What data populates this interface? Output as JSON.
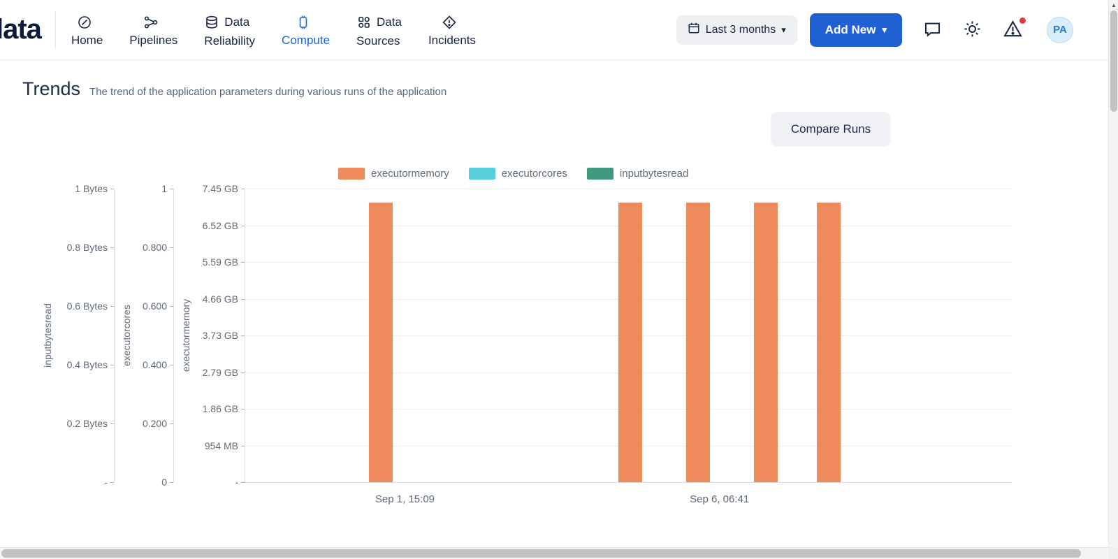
{
  "brand": {
    "logo_text": "lata"
  },
  "nav": {
    "items": [
      {
        "word1": "",
        "word2": "Home",
        "active": false
      },
      {
        "word1": "",
        "word2": "Pipelines",
        "active": false
      },
      {
        "word1": "Data",
        "word2": "Reliability",
        "active": false
      },
      {
        "word1": "",
        "word2": "Compute",
        "active": true
      },
      {
        "word1": "Data",
        "word2": "Sources",
        "active": false
      },
      {
        "word1": "",
        "word2": "Incidents",
        "active": false
      }
    ]
  },
  "toolbar": {
    "date_range_label": "Last 3 months",
    "add_new_label": "Add New",
    "avatar_initials": "PA"
  },
  "page": {
    "title": "Trends",
    "subtitle": "The trend of the application parameters during various runs of the application",
    "compare_runs_label": "Compare Runs"
  },
  "colors": {
    "accent_blue": "#1F62D6",
    "bar_orange": "#EF8A5C",
    "legend_cyan": "#57CFDC",
    "legend_teal": "#3F997E"
  },
  "chart_data": {
    "type": "bar",
    "title": "",
    "grid": true,
    "legend_position": "top-center",
    "y_axes": [
      {
        "title": "inputbytesread",
        "unit": "Bytes",
        "range": [
          0,
          1
        ],
        "ticks": [
          "1 Bytes",
          "0.8 Bytes",
          "0.6 Bytes",
          "0.4 Bytes",
          "0.2 Bytes",
          "-"
        ]
      },
      {
        "title": "executorcores",
        "unit": "",
        "range": [
          0,
          1
        ],
        "ticks": [
          "1",
          "0.800",
          "0.600",
          "0.400",
          "0.200",
          "0"
        ]
      },
      {
        "title": "executormemory",
        "unit": "GB",
        "range": [
          0,
          7.45
        ],
        "ticks": [
          "7.45 GB",
          "6.52 GB",
          "5.59 GB",
          "4.66 GB",
          "3.73 GB",
          "2.79 GB",
          "1.86 GB",
          "954 MB",
          "-"
        ]
      }
    ],
    "x_labels": [
      {
        "text": "Sep 1, 15:09",
        "x_pct": 20.9
      },
      {
        "text": "Sep 6, 06:41",
        "x_pct": 61.9
      }
    ],
    "series": [
      {
        "name": "executormemory",
        "color": "#EF8A5C",
        "unit": "GB",
        "axis_max": 7.45,
        "bars": [
          {
            "x_center_pct": 17.8,
            "value": 7.1
          },
          {
            "x_center_pct": 50.3,
            "value": 7.1
          },
          {
            "x_center_pct": 59.1,
            "value": 7.1
          },
          {
            "x_center_pct": 67.9,
            "value": 7.1
          },
          {
            "x_center_pct": 76.1,
            "value": 7.1
          }
        ]
      },
      {
        "name": "executorcores",
        "color": "#57CFDC",
        "unit": "",
        "axis_max": 1,
        "bars": []
      },
      {
        "name": "inputbytesread",
        "color": "#3F997E",
        "unit": "Bytes",
        "axis_max": 1,
        "bars": []
      }
    ]
  }
}
